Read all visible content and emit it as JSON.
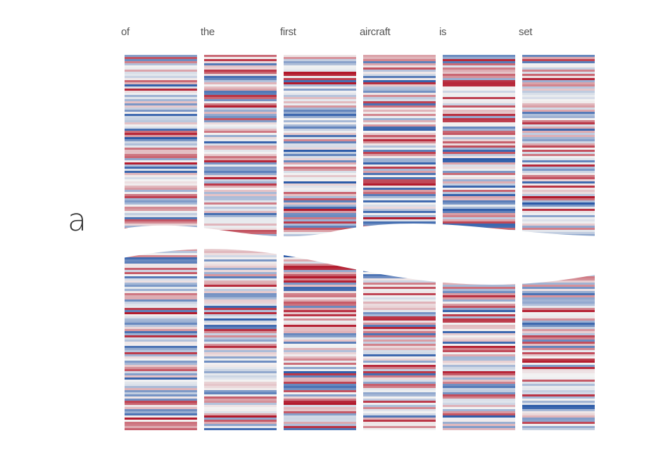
{
  "panel_label": "a",
  "tokens": [
    "of",
    "the",
    "first",
    "aircraft",
    "is",
    "set"
  ],
  "colors": {
    "negative": "#2b5aa8",
    "neutral": "#f2f2f2",
    "positive": "#b2182b",
    "background": "#ffffff"
  },
  "chart_data": {
    "type": "heatmap",
    "title": "",
    "columns": [
      "of",
      "the",
      "first",
      "aircraft",
      "is",
      "set"
    ],
    "value_range": [
      -1,
      1
    ],
    "colormap": "diverging blue-white-red",
    "note": "Each column shows per-dimension activation values for one token; the vector is truncated by a wavy break in the middle."
  }
}
